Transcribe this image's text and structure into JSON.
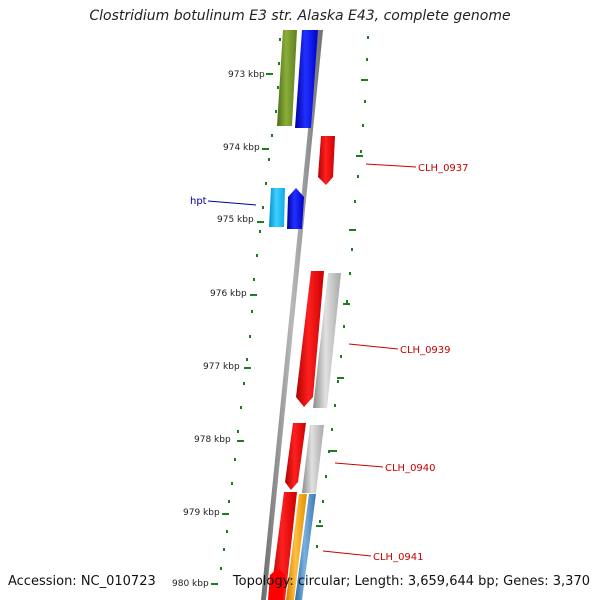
{
  "title": "Clostridium botulinum E3 str. Alaska E43, complete genome",
  "footer": {
    "accession": "Accession: NC_010723",
    "stats": "Topology: circular; Length: 3,659,644 bp; Genes: 3,370"
  },
  "ticks": [
    "973 kbp",
    "974 kbp",
    "975 kbp",
    "976 kbp",
    "977 kbp",
    "978 kbp",
    "979 kbp",
    "980 kbp"
  ],
  "genes": [
    {
      "name": "CLH_0937",
      "color": "#cc0000"
    },
    {
      "name": "hpt",
      "color": "#000099"
    },
    {
      "name": "CLH_0939",
      "color": "#cc0000"
    },
    {
      "name": "CLH_0940",
      "color": "#cc0000"
    },
    {
      "name": "CLH_0941",
      "color": "#cc0000"
    }
  ],
  "colors": {
    "backbone": "#8a8a8a",
    "tick_marks": "#1e7d1e",
    "cds_red": "#ff0000",
    "cds_blue": "#0000ff",
    "cds_cyan": "#1eb4f0",
    "cds_olive": "#6b8e23",
    "cds_gray": "#b4b4b4",
    "cds_orange": "#f5a000",
    "cds_steelblue": "#4a86c0"
  }
}
